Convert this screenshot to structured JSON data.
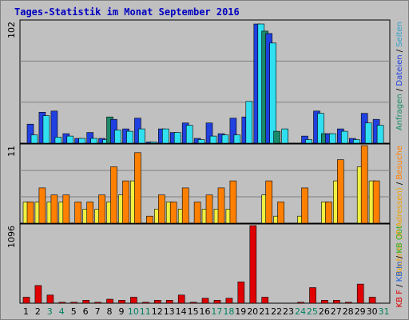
{
  "title": "Tages-Statistik im Monat September 2016",
  "chart_data": [
    {
      "panel": "top",
      "type": "bar",
      "ymax_label": "102",
      "ymax": 102,
      "colors": {
        "Seiten": "#1a8a6a",
        "Dateien": "#2040e0",
        "Anfragen": "#30e0f0"
      },
      "series": [
        {
          "name": "Seiten",
          "values": [
            0,
            0,
            0,
            0,
            0,
            0,
            0,
            22,
            0,
            0,
            0,
            0,
            0,
            0,
            0,
            0,
            0,
            0,
            0,
            0,
            94,
            10,
            0,
            0,
            0,
            8,
            0,
            0,
            0,
            0,
            0
          ]
        },
        {
          "name": "Dateien",
          "values": [
            16,
            26,
            27,
            8,
            4,
            9,
            4,
            20,
            12,
            21,
            1,
            12,
            9,
            17,
            4,
            17,
            8,
            21,
            22,
            100,
            92,
            0,
            0,
            6,
            27,
            8,
            12,
            4,
            25,
            20,
            0
          ]
        },
        {
          "name": "Anfragen",
          "values": [
            7,
            23,
            5,
            6,
            4,
            4,
            3,
            11,
            10,
            12,
            1,
            12,
            9,
            15,
            3,
            6,
            7,
            7,
            35,
            100,
            84,
            12,
            0,
            3,
            25,
            8,
            10,
            3,
            17,
            15,
            0
          ]
        }
      ],
      "right_label": [
        {
          "text": "Anfragen",
          "color": "#1a8a6a"
        },
        {
          "text": " / ",
          "color": "#000000"
        },
        {
          "text": "Dateien",
          "color": "#2040e0"
        },
        {
          "text": " / ",
          "color": "#000000"
        },
        {
          "text": "Seiten",
          "color": "#30a0d0"
        }
      ]
    },
    {
      "panel": "middle",
      "type": "bar",
      "ymax_label": "11",
      "ymax": 11,
      "colors": {
        "Rechner": "#f0f040",
        "Besuche": "#ff8000"
      },
      "series": [
        {
          "name": "Rechner",
          "values": [
            3,
            3,
            3,
            3,
            0,
            2,
            2,
            3,
            4,
            6,
            0,
            2,
            3,
            2,
            0,
            2,
            2,
            2,
            0,
            0,
            4,
            1,
            0,
            1,
            0,
            3,
            6,
            0,
            8,
            6,
            0
          ]
        },
        {
          "name": "Besuche",
          "values": [
            3,
            5,
            4,
            4,
            3,
            3,
            4,
            8,
            6,
            10,
            1,
            4,
            3,
            5,
            3,
            4,
            5,
            6,
            0,
            0,
            6,
            3,
            0,
            5,
            0,
            3,
            9,
            0,
            11,
            6,
            0
          ]
        }
      ],
      "right_label": [
        {
          "text": "Rechner (IP-Adressen)",
          "color": "#f0a000"
        },
        {
          "text": " / ",
          "color": "#000000"
        },
        {
          "text": "Besuche",
          "color": "#ff8000"
        }
      ]
    },
    {
      "panel": "bottom",
      "type": "bar",
      "ymax_label": "1096",
      "ymax": 1096,
      "colors": {
        "KB_F": "#e00000"
      },
      "series": [
        {
          "name": "KB F",
          "values": [
            85,
            250,
            115,
            14,
            14,
            42,
            14,
            56,
            42,
            85,
            14,
            42,
            42,
            115,
            14,
            70,
            42,
            70,
            300,
            1096,
            85,
            0,
            0,
            14,
            220,
            42,
            42,
            14,
            270,
            85,
            0
          ]
        }
      ],
      "right_label": [
        {
          "text": "KB F",
          "color": "#e00000"
        },
        {
          "text": " / ",
          "color": "#000000"
        },
        {
          "text": "KB In",
          "color": "#2060e0"
        },
        {
          "text": " / ",
          "color": "#000000"
        },
        {
          "text": "KB Out",
          "color": "#30b030"
        }
      ]
    }
  ],
  "x_labels": [
    "1",
    "2",
    "3",
    "4",
    "5",
    "6",
    "7",
    "8",
    "9",
    "10",
    "11",
    "12",
    "13",
    "14",
    "15",
    "16",
    "17",
    "18",
    "19",
    "20",
    "21",
    "22",
    "23",
    "24",
    "25",
    "26",
    "27",
    "28",
    "29",
    "30",
    "31"
  ],
  "weekend_days": [
    "3",
    "4",
    "10",
    "11",
    "17",
    "18",
    "24",
    "25",
    "31"
  ],
  "label_colors": {
    "weekday": "#000000",
    "weekend": "#008060"
  }
}
